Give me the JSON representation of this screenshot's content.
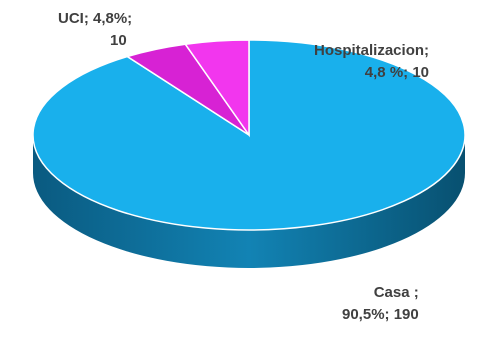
{
  "chart_data": {
    "type": "pie",
    "slices": [
      {
        "name": "Casa",
        "percent": "90,5%",
        "value": 190,
        "color": "#19b0ec",
        "side_color": "#0c6e98"
      },
      {
        "name": "UCI",
        "percent": "4,8%",
        "value": 10,
        "color": "#d722d4",
        "side_color": "#8a1088"
      },
      {
        "name": "Hospitalizacion",
        "percent": "4,8%",
        "value": 10,
        "color": "#f236ee",
        "side_color": "#9a1496"
      }
    ],
    "labels": {
      "uci_line1": "UCI; 4,8%;",
      "uci_line2": "10",
      "hosp_line1": "Hospitalizacion;",
      "hosp_line2": "4,8 %; 10",
      "casa_line1": "Casa  ;",
      "casa_line2": "90,5%; 190"
    }
  }
}
